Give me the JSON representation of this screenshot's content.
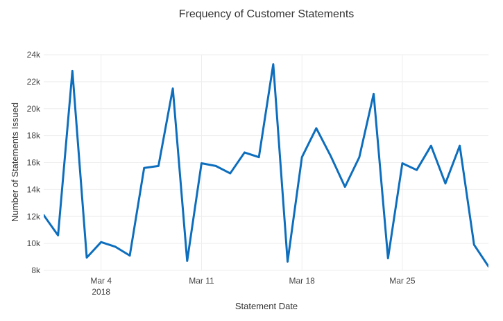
{
  "chart_data": {
    "type": "line",
    "title": "Frequency of Customer Statements",
    "xlabel": "Statement Date",
    "ylabel": "Number of Statements Issued",
    "x_axis_type": "date",
    "xlim": [
      "2018-02-28",
      "2018-03-31"
    ],
    "ylim": [
      8000,
      24000
    ],
    "grid": true,
    "legend": "none",
    "x_ticks": [
      {
        "date": "2018-03-04",
        "label": "Mar 4",
        "sublabel": "2018"
      },
      {
        "date": "2018-03-11",
        "label": "Mar 11"
      },
      {
        "date": "2018-03-18",
        "label": "Mar 18"
      },
      {
        "date": "2018-03-25",
        "label": "Mar 25"
      }
    ],
    "y_ticks": [
      {
        "value": 8000,
        "label": "8k"
      },
      {
        "value": 10000,
        "label": "10k"
      },
      {
        "value": 12000,
        "label": "12k"
      },
      {
        "value": 14000,
        "label": "14k"
      },
      {
        "value": 16000,
        "label": "16k"
      },
      {
        "value": 18000,
        "label": "18k"
      },
      {
        "value": 20000,
        "label": "20k"
      },
      {
        "value": 22000,
        "label": "22k"
      },
      {
        "value": 24000,
        "label": "24k"
      }
    ],
    "x": [
      "2018-02-28",
      "2018-03-01",
      "2018-03-02",
      "2018-03-03",
      "2018-03-04",
      "2018-03-05",
      "2018-03-06",
      "2018-03-07",
      "2018-03-08",
      "2018-03-09",
      "2018-03-10",
      "2018-03-11",
      "2018-03-12",
      "2018-03-13",
      "2018-03-14",
      "2018-03-15",
      "2018-03-16",
      "2018-03-17",
      "2018-03-18",
      "2018-03-19",
      "2018-03-20",
      "2018-03-21",
      "2018-03-22",
      "2018-03-23",
      "2018-03-24",
      "2018-03-25",
      "2018-03-26",
      "2018-03-27",
      "2018-03-28",
      "2018-03-29",
      "2018-03-30",
      "2018-03-31"
    ],
    "series": [
      {
        "color": "#0d6ebd",
        "values": [
          12100,
          10600,
          22800,
          8950,
          10100,
          9750,
          9100,
          15600,
          15750,
          21500,
          8700,
          15950,
          15750,
          15200,
          16750,
          16400,
          23300,
          8650,
          16400,
          18550,
          16500,
          14200,
          16400,
          21100,
          8900,
          15950,
          15450,
          17250,
          14450,
          17250,
          9900,
          8300
        ]
      }
    ]
  }
}
